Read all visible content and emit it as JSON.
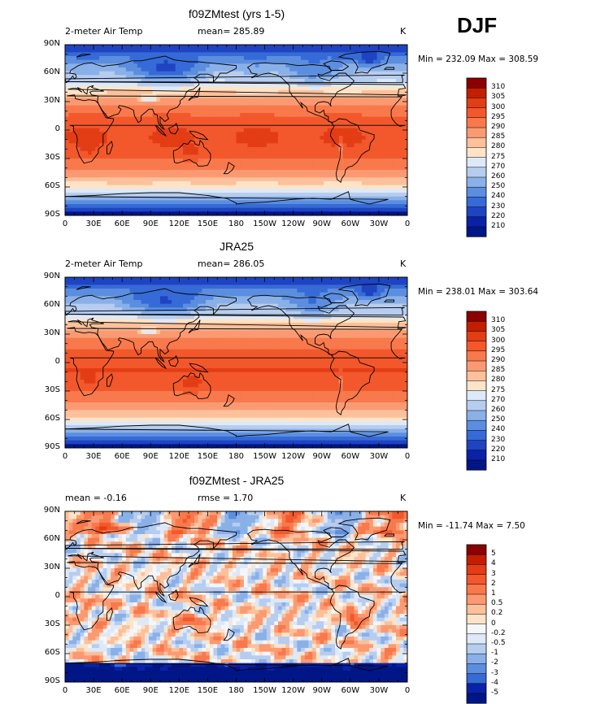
{
  "season": "DJF",
  "panels": [
    {
      "title": "f09ZMtest (yrs 1-5)",
      "left_label": "2-meter Air Temp",
      "center_label": "mean= 285.89",
      "units": "K",
      "stats": "Min = 232.09 Max = 308.59",
      "field": "temp",
      "levels": [
        "310",
        "305",
        "300",
        "295",
        "290",
        "285",
        "280",
        "275",
        "270",
        "260",
        "250",
        "240",
        "230",
        "220",
        "210"
      ],
      "colors": [
        "#8b0000",
        "#c41e00",
        "#e33d15",
        "#f2582c",
        "#f8794c",
        "#fb9a72",
        "#fcc09b",
        "#fde4c8",
        "#dde9f8",
        "#b7cdef",
        "#8ab0e8",
        "#5c8ee0",
        "#366ad6",
        "#1e44c2",
        "#0a22a8",
        "#001686"
      ]
    },
    {
      "title": "JRA25",
      "left_label": "2-meter Air Temp",
      "center_label": "mean= 286.05",
      "units": "K",
      "stats": "Min = 238.01 Max = 303.64",
      "field": "temp",
      "levels": [
        "310",
        "305",
        "300",
        "295",
        "290",
        "285",
        "280",
        "275",
        "270",
        "260",
        "250",
        "240",
        "230",
        "220",
        "210"
      ],
      "colors": [
        "#8b0000",
        "#c41e00",
        "#e33d15",
        "#f2582c",
        "#f8794c",
        "#fb9a72",
        "#fcc09b",
        "#fde4c8",
        "#dde9f8",
        "#b7cdef",
        "#8ab0e8",
        "#5c8ee0",
        "#366ad6",
        "#1e44c2",
        "#0a22a8",
        "#001686"
      ]
    },
    {
      "title": "f09ZMtest - JRA25",
      "left_label": "mean =   -0.16",
      "center_label": "rmse =    1.70",
      "units": "K",
      "stats": "Min = -11.74 Max =    7.50",
      "field": "diff",
      "levels": [
        "5",
        "4",
        "3",
        "2",
        "1",
        "0.5",
        "0.2",
        "0",
        "-0.2",
        "-0.5",
        "-1",
        "-2",
        "-3",
        "-4",
        "-5"
      ],
      "colors": [
        "#8b0000",
        "#c41e00",
        "#e33d15",
        "#f2582c",
        "#f8794c",
        "#fb9a72",
        "#fcc09b",
        "#fde4c8",
        "#f4f6fb",
        "#dde9f8",
        "#b7cdef",
        "#8ab0e8",
        "#5c8ee0",
        "#366ad6",
        "#0a22a8",
        "#001686"
      ]
    }
  ],
  "lat_labels": [
    "90N",
    "60N",
    "30N",
    "0",
    "30S",
    "60S",
    "90S"
  ],
  "lon_labels": [
    "0",
    "30E",
    "60E",
    "90E",
    "120E",
    "150E",
    "180",
    "150W",
    "120W",
    "90W",
    "60W",
    "30W",
    "0"
  ]
}
